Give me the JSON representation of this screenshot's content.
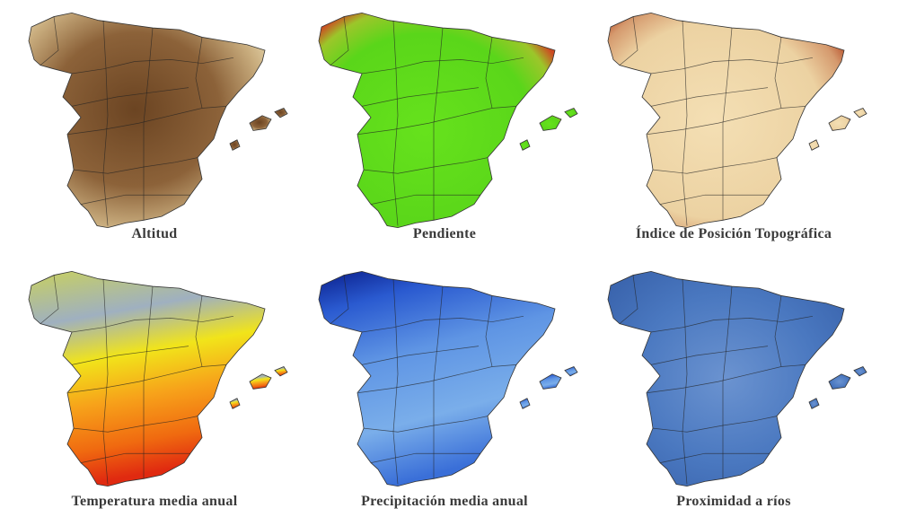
{
  "panels": [
    {
      "caption": "Altitud"
    },
    {
      "caption": "Pendiente"
    },
    {
      "caption": "Índice de Posición Topográfica"
    },
    {
      "caption": "Temperatura media anual"
    },
    {
      "caption": "Precipitación media anual"
    },
    {
      "caption": "Proximidad a ríos"
    }
  ]
}
